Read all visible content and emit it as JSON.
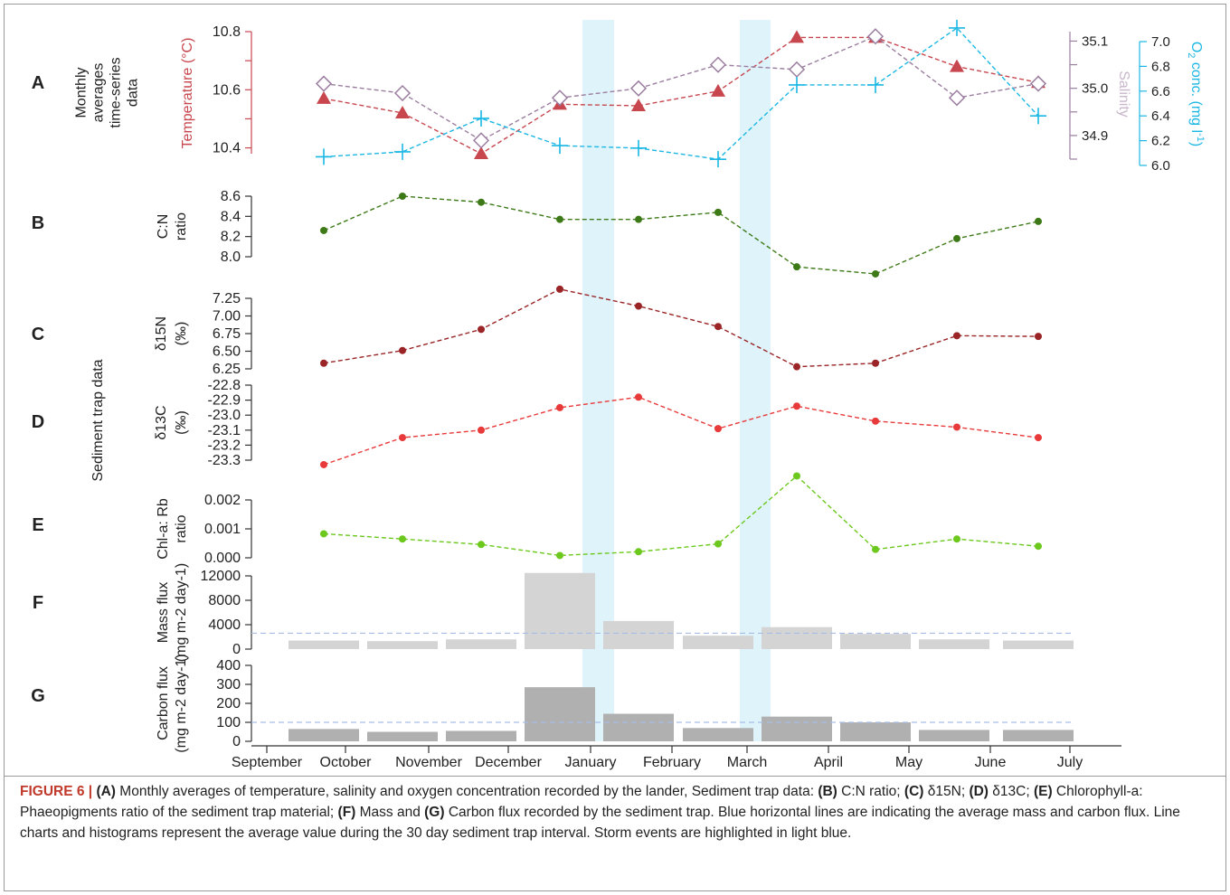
{
  "colors": {
    "temperature": "#c8474f",
    "salinity": "#9b7d9f",
    "oxygen": "#1bb7e4",
    "cn": "#3d7a17",
    "d15n": "#9a2426",
    "d13c": "#e83a3a",
    "chl": "#6cc81c",
    "mass_bar": "#d4d4d4",
    "carbon_bar": "#b0b0b0",
    "storm": "#dff3fb",
    "avg_line": "#a7bde6"
  },
  "x_axis": {
    "labels": [
      "September",
      "October",
      "November",
      "December",
      "January",
      "February",
      "March",
      "April",
      "May",
      "June",
      "July"
    ]
  },
  "chart_data": [
    {
      "id": "A",
      "panel_label": "A",
      "side_title": [
        "Monthly",
        "averages",
        "time-series",
        "data"
      ],
      "type": "line",
      "x": [
        "October",
        "November",
        "December",
        "January",
        "February",
        "March",
        "April",
        "May",
        "June",
        "July"
      ],
      "series": [
        {
          "name": "Temperature (°C)",
          "marker": "triangle",
          "values": [
            10.57,
            10.52,
            10.38,
            10.55,
            10.545,
            10.595,
            10.78,
            10.78,
            10.68,
            10.625
          ]
        },
        {
          "name": "Salinity",
          "marker": "diamond",
          "values": [
            35.0,
            34.98,
            34.88,
            34.97,
            34.99,
            35.04,
            35.03,
            35.1,
            34.97,
            35.0
          ]
        },
        {
          "name": "O2 conc. (mg l-1)",
          "marker": "plus",
          "values": [
            6.07,
            6.11,
            6.38,
            6.16,
            6.14,
            6.05,
            6.65,
            6.65,
            7.11,
            6.4
          ]
        }
      ],
      "axes": {
        "temperature": {
          "label": "Temperature (°C)",
          "ticks": [
            "10.4",
            "10.6",
            "10.8"
          ],
          "ylim": [
            10.38,
            10.8
          ]
        },
        "salinity": {
          "label": "Salinity",
          "ticks": [
            "34.9",
            "35.0",
            "35.1"
          ],
          "ylim": [
            34.85,
            35.12
          ]
        },
        "oxygen": {
          "label_main": "O",
          "label_sub": "2",
          "label_rest": " conc. (mg l",
          "label_sup": "-1",
          "label_end": ")",
          "ticks": [
            "6.0",
            "6.2",
            "6.4",
            "6.6",
            "6.8",
            "7.0"
          ],
          "ylim": [
            6.0,
            7.1
          ]
        }
      }
    },
    {
      "id": "B",
      "panel_label": "B",
      "type": "line",
      "ylabel": [
        "C:N",
        "ratio"
      ],
      "ticks": [
        "8.0",
        "8.2",
        "8.4",
        "8.6"
      ],
      "ylim": [
        8.0,
        8.6
      ],
      "x": [
        "October",
        "November",
        "December",
        "January",
        "February",
        "March",
        "April",
        "May",
        "June",
        "July"
      ],
      "values": [
        8.26,
        8.6,
        8.54,
        8.37,
        8.37,
        8.44,
        7.9,
        7.83,
        8.18,
        8.35
      ]
    },
    {
      "id": "C",
      "panel_label": "C",
      "type": "line",
      "ylabel": [
        "δ15N",
        "(‰)"
      ],
      "ticks": [
        "6.25",
        "6.50",
        "6.75",
        "7.00",
        "7.25"
      ],
      "ylim": [
        6.25,
        7.25
      ],
      "x": [
        "October",
        "November",
        "December",
        "January",
        "February",
        "March",
        "April",
        "May",
        "June",
        "July"
      ],
      "values": [
        6.33,
        6.51,
        6.81,
        7.38,
        7.14,
        6.85,
        6.28,
        6.33,
        6.72,
        6.71
      ]
    },
    {
      "id": "D",
      "panel_label": "D",
      "type": "line",
      "ylabel": [
        "δ13C",
        "(‰)"
      ],
      "ticks": [
        "-23.3",
        "-23.2",
        "-23.1",
        "-23.0",
        "-22.9",
        "-22.8"
      ],
      "ylim": [
        -23.3,
        -22.8
      ],
      "x": [
        "October",
        "November",
        "December",
        "January",
        "February",
        "March",
        "April",
        "May",
        "June",
        "July"
      ],
      "values": [
        -23.33,
        -23.15,
        -23.1,
        -22.95,
        -22.88,
        -23.09,
        -22.94,
        -23.04,
        -23.08,
        -23.15
      ]
    },
    {
      "id": "E",
      "panel_label": "E",
      "type": "line",
      "ylabel": [
        "Chl-a: Rb",
        "ratio"
      ],
      "ticks": [
        "0.000",
        "0.001",
        "0.002"
      ],
      "ylim": [
        0,
        0.002
      ],
      "x": [
        "October",
        "November",
        "December",
        "January",
        "February",
        "March",
        "April",
        "May",
        "June",
        "July"
      ],
      "values": [
        0.00083,
        0.00065,
        0.00046,
        8e-05,
        0.00021,
        0.00048,
        0.00283,
        0.00029,
        0.00065,
        0.0004
      ]
    },
    {
      "id": "F",
      "panel_label": "F",
      "type": "bar",
      "ylabel": [
        "Mass flux",
        "(mg m-2 day-1)"
      ],
      "ticks": [
        "0",
        "4000",
        "8000",
        "12000"
      ],
      "ylim": [
        0,
        12000
      ],
      "x": [
        "October",
        "November",
        "December",
        "January",
        "February",
        "March",
        "April",
        "May",
        "June",
        "July"
      ],
      "values": [
        1400,
        1300,
        1600,
        12500,
        4600,
        2200,
        3600,
        2500,
        1600,
        1400
      ],
      "average": 2600
    },
    {
      "id": "G",
      "panel_label": "G",
      "type": "bar",
      "ylabel": [
        "Carbon flux",
        "(mg m-2 day-1)"
      ],
      "ticks": [
        "0",
        "100",
        "200",
        "300",
        "400"
      ],
      "ylim": [
        0,
        400
      ],
      "x": [
        "October",
        "November",
        "December",
        "January",
        "February",
        "March",
        "April",
        "May",
        "June",
        "July"
      ],
      "values": [
        65,
        50,
        55,
        285,
        145,
        70,
        130,
        100,
        60,
        60
      ],
      "average": 100
    }
  ],
  "sediment_trap_title": "Sediment trap data",
  "caption": {
    "head": "FIGURE 6 |",
    "parts": [
      {
        "bold": true,
        "text": "(A)"
      },
      {
        "bold": false,
        "text": " Monthly averages of temperature, salinity and oxygen concentration recorded by the lander, Sediment trap data: "
      },
      {
        "bold": true,
        "text": "(B)"
      },
      {
        "bold": false,
        "text": " C:N ratio; "
      },
      {
        "bold": true,
        "text": "(C)"
      },
      {
        "bold": false,
        "text": " δ15N; "
      },
      {
        "bold": true,
        "text": "(D)"
      },
      {
        "bold": false,
        "text": " δ13C; "
      },
      {
        "bold": true,
        "text": "(E)"
      },
      {
        "bold": false,
        "text": " Chlorophyll-a: Phaeopigments ratio of the sediment trap material; "
      },
      {
        "bold": true,
        "text": "(F)"
      },
      {
        "bold": false,
        "text": " Mass and "
      },
      {
        "bold": true,
        "text": "(G)"
      },
      {
        "bold": false,
        "text": " Carbon flux recorded by the sediment trap. Blue horizontal lines are indicating the average mass and carbon flux. Line charts and histograms represent the average value during the 30 day sediment trap interval. Storm events are highlighted in light blue."
      }
    ]
  }
}
